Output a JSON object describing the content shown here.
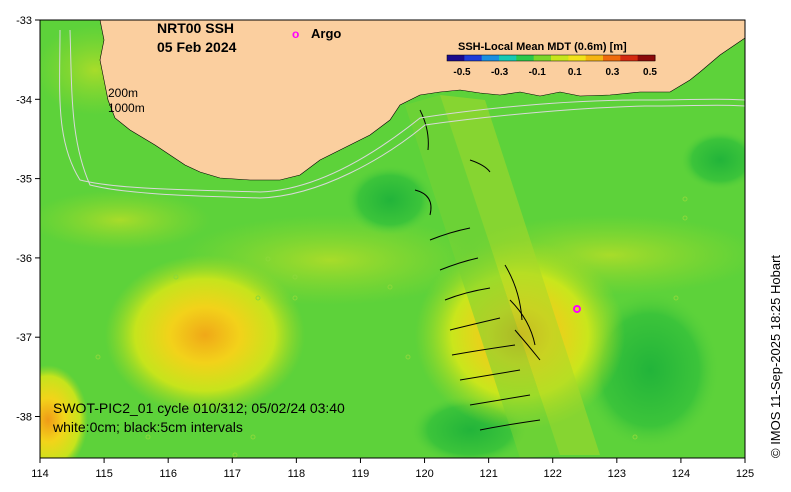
{
  "title": {
    "line1": "NRT00 SSH",
    "line2": "05 Feb 2024"
  },
  "argo_legend": {
    "symbol": "o",
    "label": "Argo"
  },
  "colorbar": {
    "title": "SSH-Local Mean MDT (0.6m) [m]",
    "ticks": [
      "-0.5",
      "-0.3",
      "-0.1",
      "0.1",
      "0.3",
      "0.5"
    ],
    "colors": [
      "#1a0a8c",
      "#1f3bd8",
      "#1c8fe0",
      "#17c9b3",
      "#2cc84a",
      "#7bd62a",
      "#c8e61c",
      "#f2e21a",
      "#f5b512",
      "#ef6a0c",
      "#d42a10",
      "#8c0a0a"
    ]
  },
  "isobaths": {
    "depth1": "200m",
    "depth2": "1000m"
  },
  "swot_caption": {
    "line1": "SWOT-PIC2_01 cycle 010/312; 05/02/24 03:40",
    "line2": "white:0cm; black:5cm intervals"
  },
  "credit": "© IMOS 11-Sep-2025 18:25 Hobart",
  "x_ticks": [
    "114",
    "115",
    "116",
    "117",
    "118",
    "119",
    "120",
    "121",
    "122",
    "123",
    "124",
    "125"
  ],
  "y_ticks": [
    "-33",
    "-34",
    "-35",
    "-36",
    "-37",
    "-38"
  ],
  "colors": {
    "land": "#fbcf9f",
    "base_field": "#5dd23a",
    "argo": "#ff00ff"
  }
}
